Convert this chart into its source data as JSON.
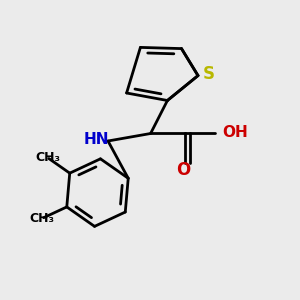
{
  "background_color": "#ebebeb",
  "bond_color": "#000000",
  "sulfur_color": "#b8b800",
  "nitrogen_color": "#0000cc",
  "oxygen_color": "#cc0000",
  "bond_width": 2.0,
  "figsize": [
    3.0,
    3.0
  ],
  "dpi": 100,
  "xlim": [
    0,
    1
  ],
  "ylim": [
    0,
    1
  ]
}
